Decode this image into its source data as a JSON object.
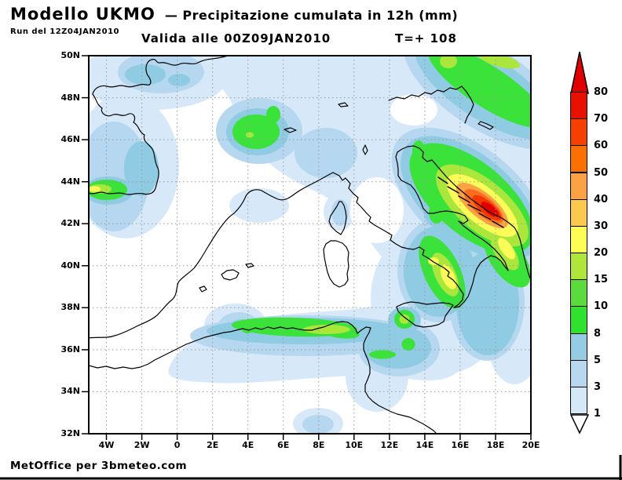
{
  "header": {
    "model_title": "Modello UKMO",
    "title_rest": "— Precipitazione cumulata in 12h (mm)",
    "run_line": "Run del 12Z04JAN2010",
    "valid_line": "Valida alle 00Z09JAN2010",
    "forecast_hour": "T=+ 108"
  },
  "map": {
    "lat_labels": [
      "50N",
      "48N",
      "46N",
      "44N",
      "42N",
      "40N",
      "38N",
      "36N",
      "34N",
      "32N"
    ],
    "lon_labels": [
      "4W",
      "2W",
      "0",
      "2E",
      "4E",
      "6E",
      "8E",
      "10E",
      "12E",
      "14E",
      "16E",
      "18E",
      "20E"
    ]
  },
  "colorbar": {
    "unit": "mm",
    "levels": [
      "80",
      "70",
      "60",
      "50",
      "40",
      "30",
      "20",
      "15",
      "10",
      "8",
      "5",
      "3",
      "1"
    ],
    "segment_colors_top_to_bottom": [
      "#ea1000",
      "#f54000",
      "#fb7000",
      "#fba245",
      "#fcc84e",
      "#fdfd54",
      "#b0e63c",
      "#5cdc3c",
      "#2ee22e",
      "#96cbe4",
      "#b7d8ef",
      "#d5e8f7"
    ],
    "arrow_top_color": "#e00000",
    "arrow_bottom_color": "#ffffff"
  },
  "palette": {
    "shade_1_3": "#d7e9f8",
    "shade_3_5": "#b5d7ef",
    "shade_5_8": "#8fcbe2",
    "shade_8_10": "#3ae23a",
    "shade_15_20": "#aae63c",
    "shade_20_30": "#fcfc58",
    "shade_30_40": "#fcc84e",
    "shade_40_50": "#fba245",
    "shade_50_60": "#fb6d1e",
    "shade_60_70": "#f23800",
    "shade_70_80": "#e30000"
  },
  "footer": {
    "credit": "MetOffice per 3bmeteo.com"
  }
}
